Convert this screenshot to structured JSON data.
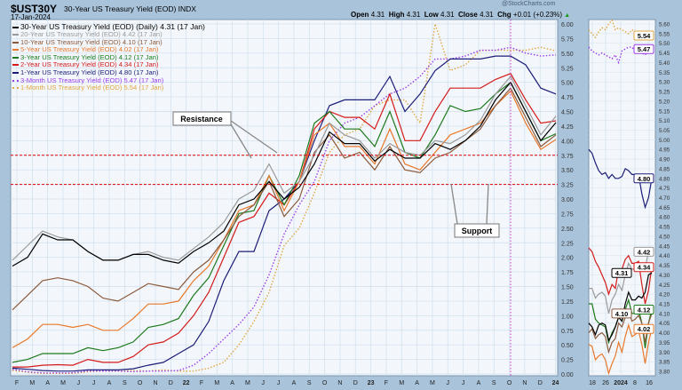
{
  "header": {
    "symbol": "$UST30Y",
    "description": "30-Year US Treasury Yield (EOD) INDX",
    "date": "17-Jan-2024",
    "watermark": "@StockCharts.com",
    "ohlc_open_label": "Open",
    "ohlc_open": "4.31",
    "ohlc_high_label": "High",
    "ohlc_high": "4.31",
    "ohlc_low_label": "Low",
    "ohlc_low": "4.31",
    "ohlc_close_label": "Close",
    "ohlc_close": "4.31",
    "chg_label": "Chg",
    "chg": "+0.01 (+0.23%)"
  },
  "legend": [
    {
      "text": "30-Year US Treasury Yield (EOD) (Daily) 4.31 (17 Jan)",
      "color": "#000000",
      "dotted": false
    },
    {
      "text": "20-Year US Treasury Yield (EOD) 4.42 (17 Jan)",
      "color": "#9a9a9a",
      "dotted": false
    },
    {
      "text": "10-Year US Treasury Yield (EOD) 4.10 (17 Jan)",
      "color": "#8b5a3c",
      "dotted": false
    },
    {
      "text": "5-Year US Treasury Yield (EOD) 4.02 (17 Jan)",
      "color": "#e8782a",
      "dotted": false
    },
    {
      "text": "3-Year US Treasury Yield (EOD) 4.12 (17 Jan)",
      "color": "#1c7a1c",
      "dotted": false
    },
    {
      "text": "2-Year US Treasury Yield (EOD) 4.34 (17 Jan)",
      "color": "#d41a1a",
      "dotted": false
    },
    {
      "text": "1-Year US Treasury Yield (EOD) 4.80 (17 Jan)",
      "color": "#1c1c78",
      "dotted": false
    },
    {
      "text": "3-Month US Treasury Yield (EOD) 5.47 (17 Jan)",
      "color": "#9b3fe8",
      "dotted": true
    },
    {
      "text": "1-Month US Treasury Yield (EOD) 5.54 (17 Jan)",
      "color": "#e0a640",
      "dotted": true
    }
  ],
  "annotations": {
    "resistance_label": "Resistance",
    "support_label": "Support",
    "resistance_level": 3.75,
    "support_level": 3.25,
    "line_color": "#e00000",
    "vertical_marker_color": "#cc33cc"
  },
  "chart_data": [
    {
      "type": "line",
      "title": "$UST30Y 30-Year US Treasury Yield (EOD) INDX",
      "x_unit": "month (Jan 2021 – Jan 2024)",
      "x": [
        "2021-01",
        "2021-02",
        "2021-03",
        "2021-04",
        "2021-05",
        "2021-06",
        "2021-07",
        "2021-08",
        "2021-09",
        "2021-10",
        "2021-11",
        "2021-12",
        "2022-01",
        "2022-02",
        "2022-03",
        "2022-04",
        "2022-05",
        "2022-06",
        "2022-07",
        "2022-08",
        "2022-09",
        "2022-10",
        "2022-11",
        "2022-12",
        "2023-01",
        "2023-02",
        "2023-03",
        "2023-04",
        "2023-05",
        "2023-06",
        "2023-07",
        "2023-08",
        "2023-09",
        "2023-10",
        "2023-11",
        "2023-12",
        "2024-01-17"
      ],
      "x_tick_labels": [
        "F",
        "M",
        "A",
        "M",
        "J",
        "J",
        "A",
        "S",
        "O",
        "N",
        "D",
        "22",
        "F",
        "M",
        "A",
        "M",
        "J",
        "J",
        "A",
        "S",
        "O",
        "N",
        "D",
        "23",
        "F",
        "M",
        "A",
        "M",
        "J",
        "J",
        "A",
        "S",
        "O",
        "N",
        "D",
        "24"
      ],
      "ylim": [
        0,
        6
      ],
      "y_tick_labels": [
        "6.00",
        "5.75",
        "5.50",
        "5.25",
        "5.00",
        "4.75",
        "4.50",
        "4.25",
        "4.00",
        "3.75",
        "3.50",
        "3.25",
        "3.00",
        "2.75",
        "2.50",
        "2.25",
        "2.00",
        "1.75",
        "1.50",
        "1.25",
        "1.00",
        "0.75",
        "0.50",
        "0.25",
        "0.00"
      ],
      "grid": true,
      "legend_placement": "top-left",
      "series": [
        {
          "name": "30-Year US Treasury Yield (EOD)",
          "values": [
            1.85,
            2.0,
            2.4,
            2.3,
            2.3,
            2.1,
            1.95,
            1.95,
            2.05,
            2.05,
            1.95,
            1.9,
            2.1,
            2.25,
            2.45,
            2.9,
            3.0,
            3.3,
            3.0,
            3.2,
            3.6,
            4.15,
            3.95,
            3.95,
            3.65,
            3.85,
            3.7,
            3.7,
            3.95,
            3.85,
            4.0,
            4.25,
            4.7,
            5.0,
            4.5,
            4.0,
            4.31
          ]
        },
        {
          "name": "20-Year US Treasury Yield (EOD)",
          "values": [
            1.95,
            2.2,
            2.45,
            2.35,
            2.3,
            2.1,
            1.95,
            1.95,
            2.05,
            2.1,
            2.0,
            1.95,
            2.15,
            2.35,
            2.6,
            3.0,
            3.15,
            3.6,
            3.1,
            3.3,
            3.75,
            4.3,
            4.1,
            4.0,
            3.7,
            3.95,
            3.8,
            3.75,
            4.0,
            3.95,
            4.1,
            4.35,
            4.8,
            5.1,
            4.6,
            4.1,
            4.42
          ]
        },
        {
          "name": "10-Year US Treasury Yield (EOD)",
          "values": [
            1.1,
            1.35,
            1.6,
            1.65,
            1.6,
            1.5,
            1.3,
            1.25,
            1.4,
            1.55,
            1.5,
            1.45,
            1.75,
            1.95,
            2.3,
            2.7,
            2.9,
            3.3,
            2.7,
            3.0,
            3.8,
            4.1,
            3.7,
            3.8,
            3.5,
            3.9,
            3.5,
            3.45,
            3.7,
            3.8,
            4.0,
            4.2,
            4.6,
            4.9,
            4.4,
            3.9,
            4.1
          ]
        },
        {
          "name": "5-Year US Treasury Yield (EOD)",
          "values": [
            0.45,
            0.6,
            0.85,
            0.85,
            0.8,
            0.85,
            0.75,
            0.75,
            0.95,
            1.2,
            1.2,
            1.25,
            1.6,
            1.85,
            2.3,
            2.8,
            2.9,
            3.4,
            2.8,
            3.3,
            4.1,
            4.3,
            3.9,
            3.9,
            3.6,
            4.2,
            3.6,
            3.5,
            3.8,
            4.1,
            4.2,
            4.3,
            4.6,
            4.85,
            4.3,
            3.85,
            4.02
          ]
        },
        {
          "name": "3-Year US Treasury Yield (EOD)",
          "values": [
            0.2,
            0.25,
            0.35,
            0.35,
            0.35,
            0.45,
            0.4,
            0.45,
            0.55,
            0.8,
            0.85,
            0.95,
            1.35,
            1.65,
            2.2,
            2.75,
            2.8,
            3.4,
            2.9,
            3.4,
            4.3,
            4.5,
            4.2,
            4.2,
            3.9,
            4.5,
            3.8,
            3.7,
            4.1,
            4.6,
            4.5,
            4.55,
            4.8,
            5.0,
            4.5,
            4.0,
            4.12
          ]
        },
        {
          "name": "2-Year US Treasury Yield (EOD)",
          "values": [
            0.12,
            0.12,
            0.15,
            0.16,
            0.15,
            0.25,
            0.2,
            0.2,
            0.3,
            0.5,
            0.55,
            0.7,
            1.0,
            1.4,
            2.0,
            2.6,
            2.7,
            3.1,
            2.9,
            3.3,
            4.2,
            4.5,
            4.4,
            4.4,
            4.2,
            4.8,
            4.0,
            4.0,
            4.5,
            4.9,
            4.9,
            4.9,
            5.05,
            5.15,
            4.7,
            4.3,
            4.34
          ]
        },
        {
          "name": "1-Year US Treasury Yield (EOD)",
          "values": [
            0.1,
            0.08,
            0.06,
            0.05,
            0.05,
            0.07,
            0.07,
            0.07,
            0.09,
            0.15,
            0.2,
            0.35,
            0.5,
            0.9,
            1.6,
            2.1,
            2.1,
            2.8,
            3.0,
            3.3,
            4.0,
            4.6,
            4.7,
            4.7,
            4.7,
            5.1,
            4.5,
            4.8,
            5.2,
            5.4,
            5.4,
            5.4,
            5.45,
            5.45,
            5.3,
            4.9,
            4.8
          ]
        },
        {
          "name": "3-Month US Treasury Yield (EOD)",
          "dotted": true,
          "values": [
            0.08,
            0.04,
            0.02,
            0.02,
            0.02,
            0.05,
            0.05,
            0.05,
            0.04,
            0.05,
            0.05,
            0.06,
            0.15,
            0.35,
            0.6,
            0.85,
            1.15,
            1.7,
            2.4,
            2.9,
            3.3,
            4.0,
            4.3,
            4.4,
            4.6,
            4.8,
            4.9,
            5.1,
            5.4,
            5.4,
            5.45,
            5.55,
            5.55,
            5.6,
            5.5,
            5.45,
            5.47
          ]
        },
        {
          "name": "1-Month US Treasury Yield (EOD)",
          "dotted": true,
          "values": [
            0.06,
            0.03,
            0.01,
            0.01,
            0.01,
            0.04,
            0.05,
            0.05,
            0.06,
            0.05,
            0.07,
            0.05,
            0.05,
            0.1,
            0.2,
            0.5,
            0.9,
            1.4,
            2.2,
            2.5,
            3.1,
            3.8,
            4.1,
            4.2,
            4.6,
            4.7,
            4.7,
            4.3,
            6.0,
            5.2,
            5.3,
            5.55,
            5.55,
            5.55,
            5.55,
            5.6,
            5.54
          ]
        }
      ]
    },
    {
      "type": "line",
      "x_tick_labels": [
        "18",
        "26",
        "2024",
        "8",
        "16"
      ],
      "ylim": [
        3.78,
        5.62
      ],
      "y_tick_labels": [
        "5.60",
        "5.55",
        "5.50",
        "5.45",
        "5.40",
        "5.35",
        "5.30",
        "5.25",
        "5.20",
        "5.15",
        "5.10",
        "5.05",
        "5.00",
        "4.95",
        "4.90",
        "4.85",
        "4.80",
        "4.75",
        "4.70",
        "4.65",
        "4.60",
        "4.55",
        "4.50",
        "4.45",
        "4.40",
        "4.35",
        "4.30",
        "4.25",
        "4.20",
        "4.15",
        "4.10",
        "4.05",
        "4.00",
        "3.95",
        "3.90",
        "3.85",
        "3.80"
      ],
      "grid": true,
      "badges": [
        "5.54",
        "5.47",
        "4.80",
        "4.42",
        "4.34",
        "4.31",
        "4.12",
        "4.10",
        "4.02"
      ],
      "series": [
        {
          "name": "30-Year",
          "values": [
            4.05,
            4.03,
            3.99,
            4.04,
            4.05,
            4.04,
            3.96,
            3.99,
            4.03,
            4.08,
            4.06,
            4.15,
            4.21,
            4.17,
            4.17,
            4.19,
            4.18,
            4.21,
            4.3,
            4.31
          ]
        },
        {
          "name": "20-Year",
          "values": [
            4.23,
            4.23,
            4.18,
            4.2,
            4.21,
            4.19,
            4.1,
            4.17,
            4.2,
            4.25,
            4.22,
            4.3,
            4.36,
            4.33,
            4.33,
            4.35,
            4.32,
            4.32,
            4.43,
            4.42
          ]
        },
        {
          "name": "10-Year",
          "values": [
            4.0,
            4.02,
            3.97,
            3.99,
            4.0,
            3.98,
            3.9,
            3.95,
            3.97,
            4.05,
            4.03,
            4.08,
            4.12,
            4.06,
            4.07,
            4.09,
            4.05,
            3.95,
            4.05,
            4.1
          ]
        },
        {
          "name": "5-Year",
          "values": [
            3.94,
            3.93,
            3.86,
            3.88,
            3.89,
            3.86,
            3.79,
            3.84,
            3.88,
            3.95,
            3.9,
            3.98,
            4.04,
            3.98,
            3.99,
            4.01,
            3.94,
            3.84,
            3.95,
            4.02
          ]
        },
        {
          "name": "3-Year",
          "values": [
            4.15,
            4.15,
            4.07,
            4.05,
            4.04,
            4.03,
            3.95,
            4.0,
            4.03,
            4.08,
            4.06,
            4.12,
            4.17,
            4.1,
            4.1,
            4.12,
            4.05,
            3.92,
            4.05,
            4.12
          ]
        },
        {
          "name": "2-Year",
          "values": [
            4.44,
            4.42,
            4.37,
            4.34,
            4.3,
            4.26,
            4.2,
            4.25,
            4.23,
            4.33,
            4.33,
            4.38,
            4.4,
            4.36,
            4.36,
            4.37,
            4.25,
            4.15,
            4.22,
            4.34
          ]
        },
        {
          "name": "1-Year",
          "values": [
            4.95,
            4.93,
            4.88,
            4.84,
            4.82,
            4.83,
            4.8,
            4.82,
            4.8,
            4.8,
            4.81,
            4.85,
            4.84,
            4.82,
            4.82,
            4.82,
            4.72,
            4.65,
            4.7,
            4.8
          ]
        },
        {
          "name": "3-Month",
          "dotted": true,
          "values": [
            5.48,
            5.46,
            5.45,
            5.44,
            5.45,
            5.44,
            5.43,
            5.42,
            5.44,
            5.4,
            5.46,
            5.47,
            5.48,
            5.48,
            5.46,
            5.45,
            5.45,
            5.44,
            5.46,
            5.47
          ]
        },
        {
          "name": "1-Month",
          "dotted": true,
          "values": [
            5.57,
            5.55,
            5.53,
            5.56,
            5.58,
            5.57,
            5.6,
            5.62,
            5.57,
            5.58,
            5.57,
            5.56,
            5.55,
            5.57,
            5.56,
            5.55,
            5.55,
            5.56,
            5.55,
            5.54
          ]
        }
      ]
    }
  ]
}
